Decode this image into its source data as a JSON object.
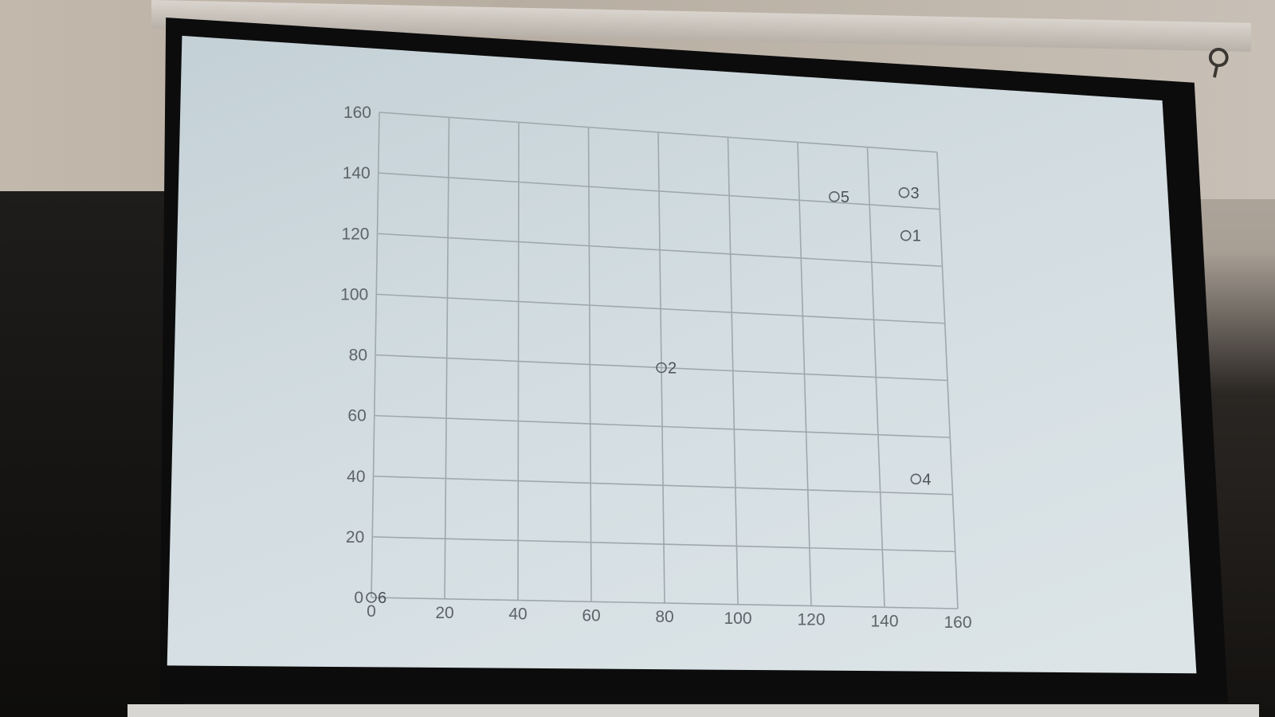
{
  "chart_data": {
    "type": "scatter",
    "title": "",
    "xlabel": "",
    "ylabel": "",
    "xlim": [
      0,
      160
    ],
    "ylim": [
      0,
      160
    ],
    "x_ticks": [
      "0",
      "20",
      "40",
      "60",
      "80",
      "100",
      "120",
      "140",
      "160"
    ],
    "y_ticks": [
      "0",
      "20",
      "40",
      "60",
      "80",
      "100",
      "120",
      "140",
      "160"
    ],
    "grid": true,
    "marker": "open-circle",
    "points": [
      {
        "label": "1",
        "x": 150,
        "y": 130
      },
      {
        "label": "2",
        "x": 80,
        "y": 80
      },
      {
        "label": "3",
        "x": 150,
        "y": 145
      },
      {
        "label": "4",
        "x": 150,
        "y": 45
      },
      {
        "label": "5",
        "x": 130,
        "y": 142
      },
      {
        "label": "6",
        "x": 0,
        "y": 0
      }
    ],
    "colors": {
      "grid": "#9ea8ad",
      "axis_text": "#5d6468",
      "marker": "#5a6266"
    }
  }
}
